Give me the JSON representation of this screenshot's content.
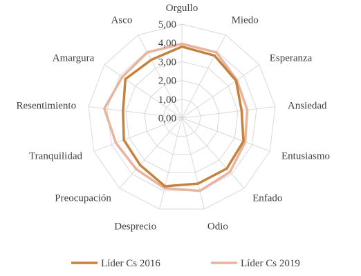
{
  "chart_data": {
    "type": "radar",
    "categories": [
      "Orgullo",
      "Miedo",
      "Esperanza",
      "Ansiedad",
      "Entusiasmo",
      "Enfado",
      "Odio",
      "Desprecio",
      "Preocupación",
      "Tranquilidad",
      "Resentimiento",
      "Amargura",
      "Asco"
    ],
    "ylim": [
      0,
      5
    ],
    "ticks": [
      "0,00",
      "1,00",
      "2,00",
      "3,00",
      "4,00",
      "5,00"
    ],
    "grid": true,
    "legend_position": "bottom",
    "series": [
      {
        "name": "Líder Cs 2016",
        "color": "#C5823D",
        "values": [
          3.8,
          3.75,
          3.5,
          3.2,
          3.5,
          3.6,
          3.6,
          3.75,
          3.35,
          3.3,
          3.15,
          3.65,
          3.5
        ]
      },
      {
        "name": "Líder Cs 2019",
        "color": "#E8B49D",
        "values": [
          3.95,
          3.95,
          3.55,
          3.5,
          3.6,
          3.85,
          4.0,
          3.85,
          3.65,
          3.75,
          4.15,
          3.85,
          3.95
        ]
      }
    ]
  }
}
